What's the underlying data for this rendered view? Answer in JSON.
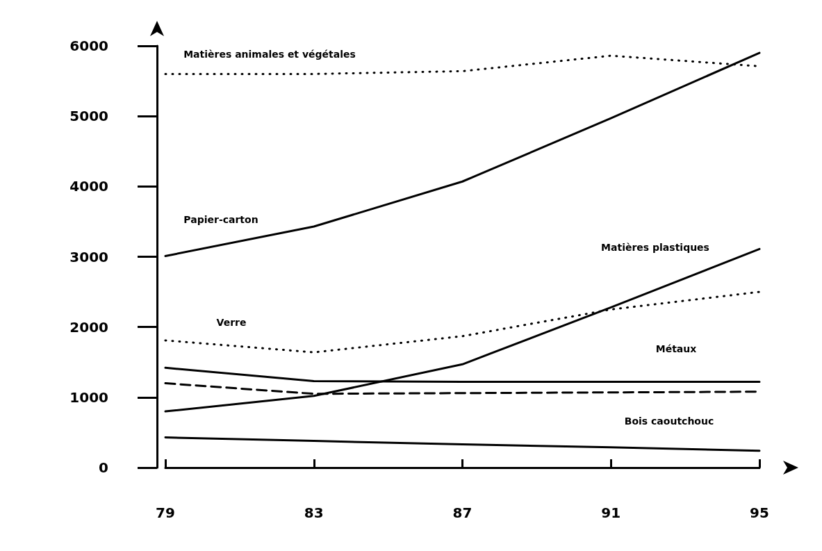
{
  "chart_data": {
    "type": "line",
    "categories": [
      "79",
      "83",
      "87",
      "91",
      "95"
    ],
    "series": [
      {
        "name": "Matières animales et végétales",
        "color": "#000000",
        "line_style": "dotted",
        "values": [
          5600,
          5600,
          5640,
          5860,
          5710
        ]
      },
      {
        "name": "Papier-carton",
        "color": "#000000",
        "line_style": "solid",
        "values": [
          3010,
          3430,
          4070,
          4970,
          5900
        ]
      },
      {
        "name": "Matières plastiques",
        "color": "#000000",
        "line_style": "solid",
        "values": [
          800,
          1020,
          1470,
          2280,
          3110
        ]
      },
      {
        "name": "Verre",
        "color": "#000000",
        "line_style": "dotted",
        "values": [
          1810,
          1640,
          1870,
          2250,
          2500
        ]
      },
      {
        "name": "Métaux",
        "color": "#000000",
        "line_style": "solid",
        "values": [
          1420,
          1230,
          1220,
          1220,
          1220
        ]
      },
      {
        "name": "Bois caoutchouc",
        "color": "#000000",
        "line_style": "dashed",
        "values": [
          1200,
          1050,
          1060,
          1070,
          1080
        ]
      },
      {
        "color": "#000000",
        "line_style": "solid",
        "values": [
          430,
          380,
          330,
          290,
          240
        ]
      }
    ],
    "ylim": [
      0,
      6000
    ],
    "yticks": [
      0,
      1000,
      2000,
      3000,
      4000,
      5000,
      6000
    ],
    "grid": false,
    "legend": false,
    "marker": "none"
  }
}
